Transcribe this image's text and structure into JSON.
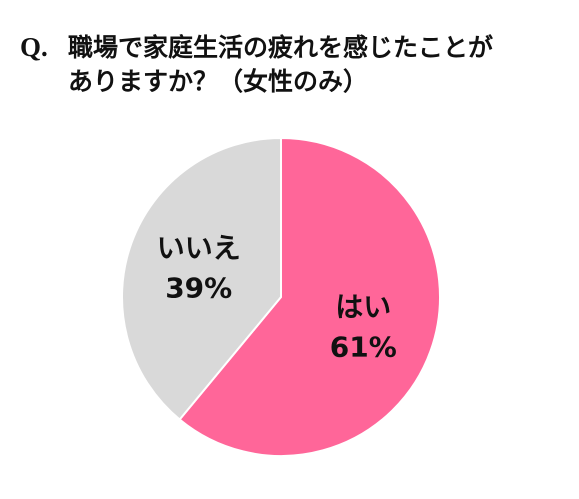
{
  "question": {
    "prefix": "Q.",
    "line1": "職場で家庭生活の疲れを感じたことが",
    "line2": "ありますか？（女性のみ）"
  },
  "chart_data": {
    "type": "pie",
    "slices": [
      {
        "label": "はい",
        "value": 61,
        "value_label": "61%",
        "color": "#ff6699"
      },
      {
        "label": "いいえ",
        "value": 39,
        "value_label": "39%",
        "color": "#d9d9d9"
      }
    ],
    "start": "12 o'clock",
    "direction": "clockwise",
    "legend": "none",
    "slice_border_color": "#ffffff"
  }
}
